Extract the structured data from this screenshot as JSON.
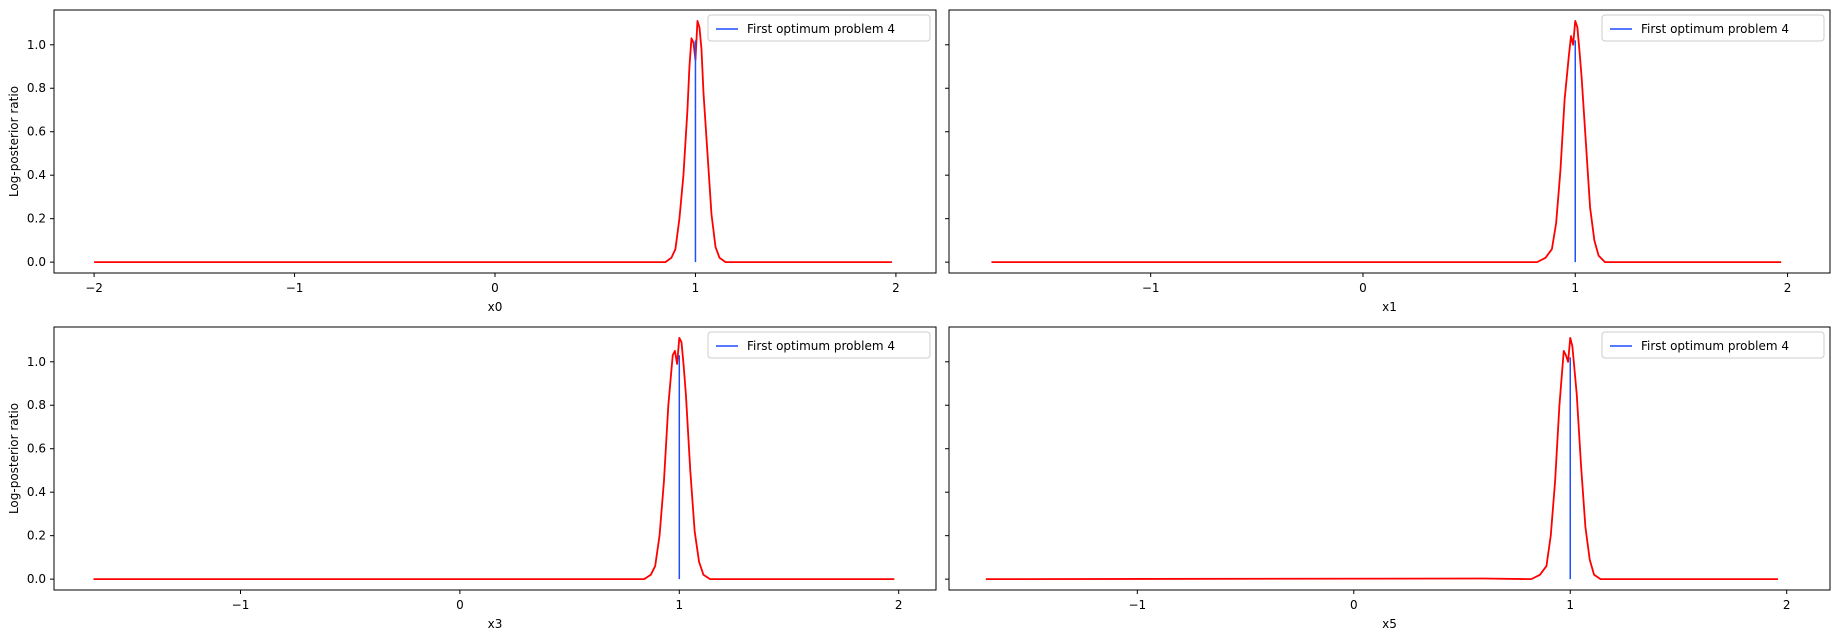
{
  "colors": {
    "profile_line": "#ff0000",
    "optimum_line": "#1f4fff",
    "axes": "#000000",
    "background": "#ffffff"
  },
  "chart_data": [
    {
      "type": "line",
      "xlabel": "x0",
      "ylabel": "Log-posterior ratio",
      "xlim": [
        -2.2,
        2.2
      ],
      "ylim": [
        -0.05,
        1.16
      ],
      "xticks": [
        -2,
        -1,
        0,
        1,
        2
      ],
      "xtick_labels": [
        "−2",
        "−1",
        "0",
        "1",
        "2"
      ],
      "yticks": [
        0.0,
        0.2,
        0.4,
        0.6,
        0.8,
        1.0
      ],
      "ytick_labels": [
        "0.0",
        "0.2",
        "0.4",
        "0.6",
        "0.8",
        "1.0"
      ],
      "grid": false,
      "legend_placement": "upper-right",
      "series": [
        {
          "kind": "profile",
          "x": [
            -2.0,
            0.85,
            0.88,
            0.9,
            0.92,
            0.94,
            0.96,
            0.97,
            0.98,
            0.99,
            1.0,
            1.01,
            1.02,
            1.03,
            1.04,
            1.06,
            1.08,
            1.1,
            1.12,
            1.15,
            1.98
          ],
          "y": [
            0.0,
            0.0,
            0.02,
            0.06,
            0.2,
            0.4,
            0.7,
            0.9,
            1.03,
            1.01,
            0.93,
            1.11,
            1.08,
            0.98,
            0.78,
            0.5,
            0.22,
            0.07,
            0.02,
            0.0,
            0.0
          ]
        },
        {
          "kind": "optimum",
          "name": "First optimum problem 4",
          "x": [
            1.0,
            1.0
          ],
          "y": [
            0.0,
            1.02
          ]
        }
      ]
    },
    {
      "type": "line",
      "xlabel": "x1",
      "ylabel": "",
      "xlim": [
        -1.95,
        2.2
      ],
      "ylim": [
        -0.05,
        1.16
      ],
      "xticks": [
        -1,
        0,
        1,
        2
      ],
      "xtick_labels": [
        "−1",
        "0",
        "1",
        "2"
      ],
      "yticks": [
        0.0,
        0.2,
        0.4,
        0.6,
        0.8,
        1.0
      ],
      "ytick_labels": [],
      "grid": false,
      "legend_placement": "upper-right",
      "series": [
        {
          "kind": "profile",
          "x": [
            -1.75,
            0.82,
            0.86,
            0.89,
            0.91,
            0.93,
            0.95,
            0.97,
            0.98,
            0.99,
            1.0,
            1.01,
            1.02,
            1.03,
            1.05,
            1.07,
            1.09,
            1.11,
            1.14,
            1.97
          ],
          "y": [
            0.0,
            0.0,
            0.02,
            0.06,
            0.18,
            0.42,
            0.75,
            0.95,
            1.04,
            1.0,
            1.11,
            1.08,
            0.97,
            0.85,
            0.55,
            0.25,
            0.1,
            0.03,
            0.0,
            0.0
          ]
        },
        {
          "kind": "optimum",
          "name": "First optimum problem 4",
          "x": [
            1.0,
            1.0
          ],
          "y": [
            0.0,
            1.02
          ]
        }
      ]
    },
    {
      "type": "line",
      "xlabel": "x3",
      "ylabel": "Log-posterior ratio",
      "xlim": [
        -1.85,
        2.17
      ],
      "ylim": [
        -0.05,
        1.16
      ],
      "xticks": [
        -1,
        0,
        1,
        2
      ],
      "xtick_labels": [
        "−1",
        "0",
        "1",
        "2"
      ],
      "yticks": [
        0.0,
        0.2,
        0.4,
        0.6,
        0.8,
        1.0
      ],
      "ytick_labels": [
        "0.0",
        "0.2",
        "0.4",
        "0.6",
        "0.8",
        "1.0"
      ],
      "grid": false,
      "legend_placement": "upper-right",
      "series": [
        {
          "kind": "profile",
          "x": [
            -1.67,
            0.84,
            0.87,
            0.89,
            0.91,
            0.93,
            0.95,
            0.97,
            0.98,
            0.99,
            1.0,
            1.01,
            1.02,
            1.03,
            1.05,
            1.07,
            1.09,
            1.11,
            1.14,
            1.98
          ],
          "y": [
            0.0,
            0.0,
            0.02,
            0.06,
            0.2,
            0.45,
            0.8,
            1.03,
            1.05,
            0.99,
            1.11,
            1.09,
            0.98,
            0.85,
            0.5,
            0.22,
            0.08,
            0.02,
            0.0,
            0.0
          ]
        },
        {
          "kind": "optimum",
          "name": "First optimum problem 4",
          "x": [
            1.0,
            1.0
          ],
          "y": [
            0.0,
            1.03
          ]
        }
      ]
    },
    {
      "type": "line",
      "xlabel": "x5",
      "ylabel": "",
      "xlim": [
        -1.87,
        2.2
      ],
      "ylim": [
        -0.05,
        1.16
      ],
      "xticks": [
        -1,
        0,
        1,
        2
      ],
      "xtick_labels": [
        "−1",
        "0",
        "1",
        "2"
      ],
      "yticks": [
        0.0,
        0.2,
        0.4,
        0.6,
        0.8,
        1.0
      ],
      "ytick_labels": [],
      "grid": false,
      "legend_placement": "upper-right",
      "series": [
        {
          "kind": "profile",
          "x": [
            -1.7,
            0.6,
            0.82,
            0.86,
            0.89,
            0.91,
            0.93,
            0.95,
            0.97,
            0.98,
            0.99,
            1.0,
            1.01,
            1.02,
            1.03,
            1.05,
            1.07,
            1.09,
            1.11,
            1.14,
            1.96
          ],
          "y": [
            0.0,
            0.003,
            0.0,
            0.02,
            0.06,
            0.2,
            0.45,
            0.8,
            1.05,
            1.03,
            1.0,
            1.11,
            1.07,
            0.96,
            0.85,
            0.52,
            0.24,
            0.09,
            0.02,
            0.0,
            0.0
          ]
        },
        {
          "kind": "optimum",
          "name": "First optimum problem 4",
          "x": [
            1.0,
            1.0
          ],
          "y": [
            0.0,
            1.02
          ]
        }
      ]
    }
  ]
}
